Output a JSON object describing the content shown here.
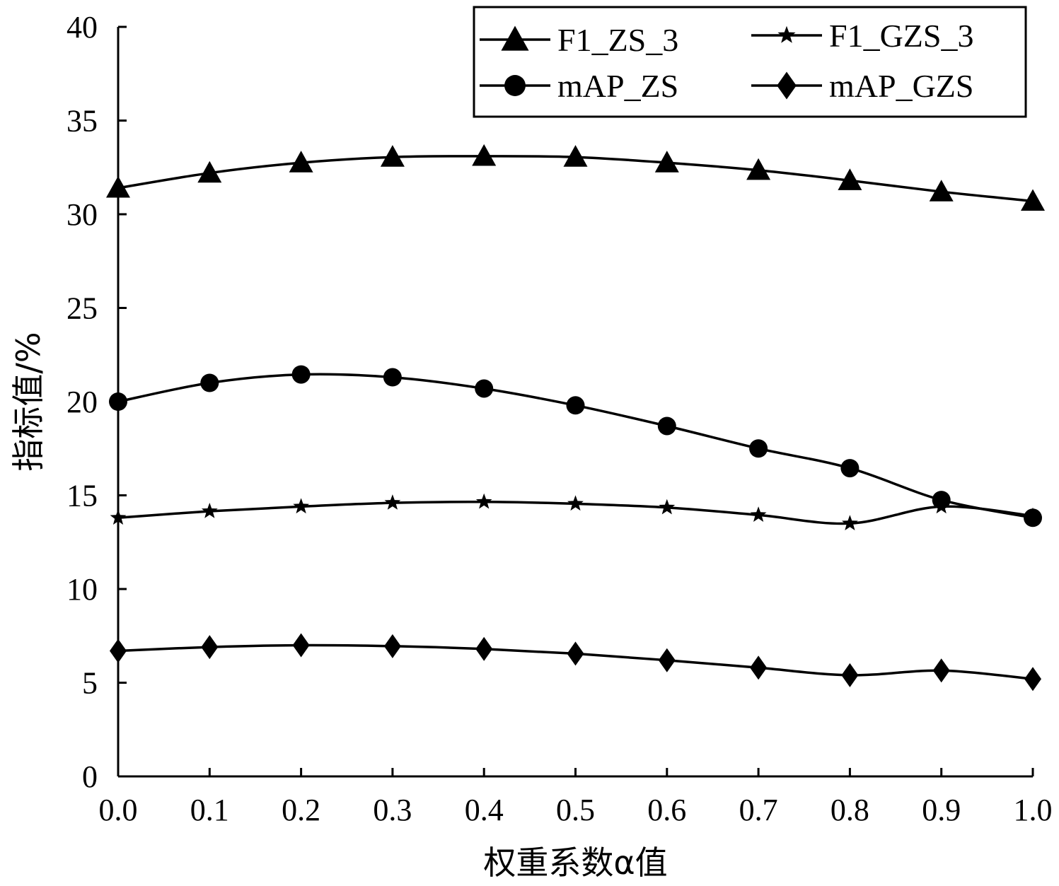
{
  "chart_data": {
    "type": "line",
    "title": "",
    "xlabel": "权重系数α值",
    "ylabel": "指标值/%",
    "x": [
      0.0,
      0.1,
      0.2,
      0.3,
      0.4,
      0.5,
      0.6,
      0.7,
      0.8,
      0.9,
      1.0
    ],
    "xticks": [
      "0.0",
      "0.1",
      "0.2",
      "0.3",
      "0.4",
      "0.5",
      "0.6",
      "0.7",
      "0.8",
      "0.9",
      "1.0"
    ],
    "yticks": [
      "0",
      "5",
      "10",
      "15",
      "20",
      "25",
      "30",
      "35",
      "40"
    ],
    "xlim": [
      0,
      1
    ],
    "ylim": [
      0,
      40
    ],
    "grid": false,
    "legend_position": "top-right",
    "series": [
      {
        "name": "F1_ZS_3",
        "marker": "triangle",
        "values": [
          31.4,
          32.2,
          32.75,
          33.05,
          33.1,
          33.05,
          32.75,
          32.35,
          31.8,
          31.2,
          30.7
        ]
      },
      {
        "name": "F1_GZS_3",
        "marker": "star",
        "values": [
          13.8,
          14.15,
          14.4,
          14.6,
          14.65,
          14.55,
          14.35,
          13.95,
          13.5,
          14.4,
          13.9
        ]
      },
      {
        "name": "mAP_ZS",
        "marker": "circle",
        "values": [
          20.0,
          21.0,
          21.45,
          21.3,
          20.7,
          19.8,
          18.7,
          17.5,
          16.45,
          14.75,
          13.8
        ]
      },
      {
        "name": "mAP_GZS",
        "marker": "diamond",
        "values": [
          6.7,
          6.9,
          7.0,
          6.95,
          6.8,
          6.55,
          6.2,
          5.8,
          5.4,
          5.65,
          5.2
        ]
      }
    ],
    "legend_order": [
      "F1_ZS_3",
      "F1_GZS_3",
      "mAP_ZS",
      "mAP_GZS"
    ]
  }
}
